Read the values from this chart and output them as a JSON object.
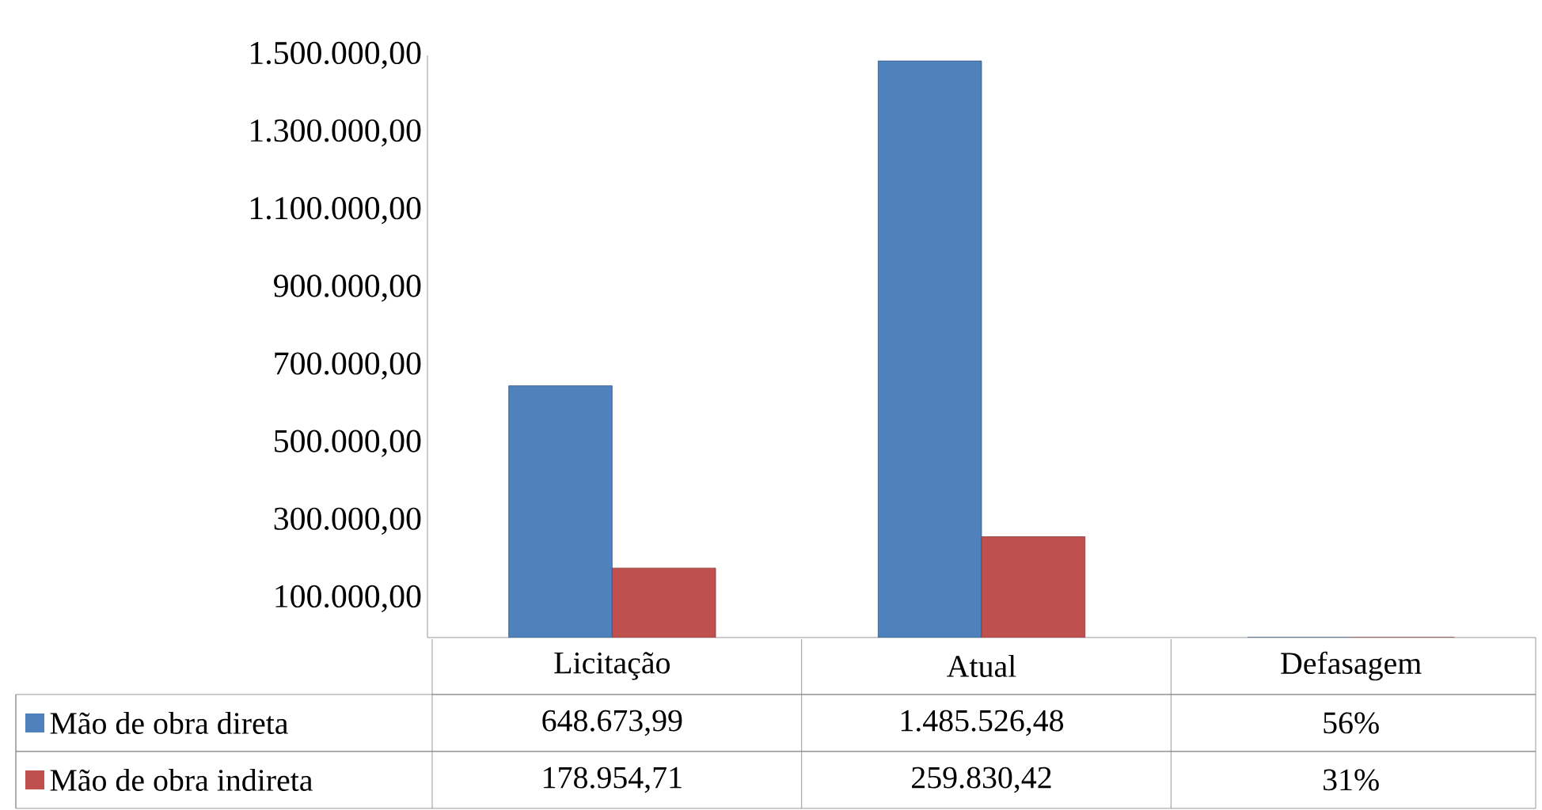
{
  "chart_data": {
    "type": "bar",
    "categories": [
      "Licitação",
      "Atual",
      "Defasagem"
    ],
    "series": [
      {
        "name": "Mão de obra direta",
        "color": "#4f81bd",
        "values": [
          648673.99,
          1485526.48,
          56
        ],
        "value_labels": [
          "648.673,99",
          "1.485.526,48",
          "56%"
        ]
      },
      {
        "name": "Mão de obra indireta",
        "color": "#c0504d",
        "values": [
          178954.71,
          259830.42,
          31
        ],
        "value_labels": [
          "178.954,71",
          "259.830,42",
          "31%"
        ]
      }
    ],
    "ylim": [
      0,
      1500000
    ],
    "yticks": [
      {
        "value": 100000,
        "label": "100.000,00"
      },
      {
        "value": 300000,
        "label": "300.000,00"
      },
      {
        "value": 500000,
        "label": "500.000,00"
      },
      {
        "value": 700000,
        "label": "700.000,00"
      },
      {
        "value": 900000,
        "label": "900.000,00"
      },
      {
        "value": 1100000,
        "label": "1.100.000,00"
      },
      {
        "value": 1300000,
        "label": "1.300.000,00"
      },
      {
        "value": 1500000,
        "label": "1.500.000,00"
      }
    ],
    "legend": "left"
  }
}
